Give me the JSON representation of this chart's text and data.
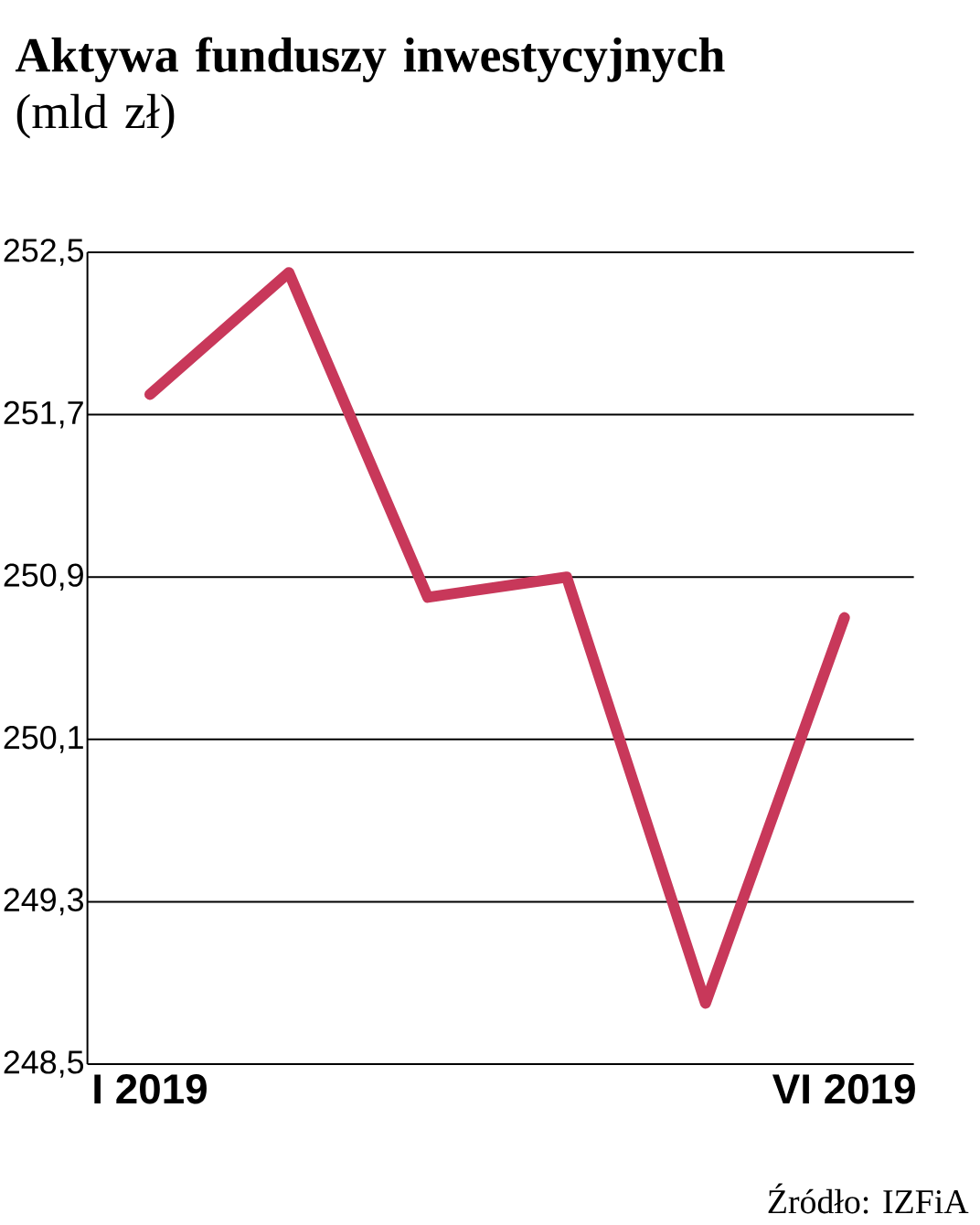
{
  "chart_data": {
    "type": "line",
    "title": "**Aktywa funduszy inwestycyjnych** (mld zł)",
    "categories": [
      "I 2019",
      null,
      null,
      null,
      null,
      "VI 2019"
    ],
    "series": [
      {
        "color": "#c8385a",
        "values": [
          251.8,
          252.4,
          250.8,
          250.9,
          248.8,
          250.7
        ]
      }
    ],
    "ylim": [
      248.5,
      252.5
    ],
    "yticks": [
      {
        "value": 248.5,
        "label": "248,5"
      },
      {
        "value": 249.3,
        "label": "249,3"
      },
      {
        "value": 250.1,
        "label": "250,1"
      },
      {
        "value": 250.9,
        "label": "250,9"
      },
      {
        "value": 251.7,
        "label": "251,7"
      },
      {
        "value": 252.5,
        "label": "252,5"
      }
    ],
    "grid": "y",
    "marker": "none",
    "line_style": "solid",
    "annotations": [
      "Źródło: IZFiA"
    ]
  }
}
